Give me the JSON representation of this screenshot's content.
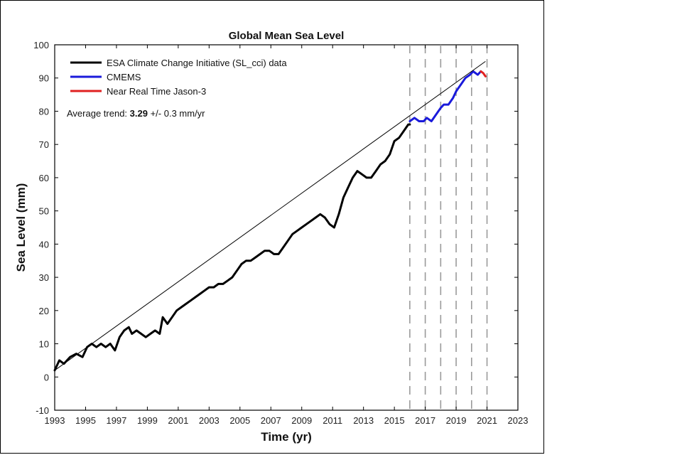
{
  "chart_data": {
    "type": "line",
    "title": "Global Mean Sea Level",
    "xlabel": "Time (yr)",
    "ylabel": "Sea Level (mm)",
    "xlim": [
      1993,
      2023
    ],
    "ylim": [
      -10,
      100
    ],
    "x_ticks": [
      1993,
      1995,
      1997,
      1999,
      2001,
      2003,
      2005,
      2007,
      2009,
      2011,
      2013,
      2015,
      2017,
      2019,
      2021,
      2023
    ],
    "y_ticks": [
      -10,
      0,
      10,
      20,
      30,
      40,
      50,
      60,
      70,
      80,
      90,
      100
    ],
    "grid": false,
    "legend_position": "top-left",
    "series": [
      {
        "name": "ESA Climate Change Initiative (SL_cci) data",
        "color": "#000000",
        "x": [
          1993.0,
          1993.3,
          1993.6,
          1994.0,
          1994.4,
          1994.8,
          1995.1,
          1995.4,
          1995.7,
          1996.0,
          1996.3,
          1996.6,
          1996.9,
          1997.2,
          1997.5,
          1997.8,
          1998.0,
          1998.3,
          1998.6,
          1998.9,
          1999.2,
          1999.5,
          1999.8,
          2000.0,
          2000.3,
          2000.6,
          2000.9,
          2001.2,
          2001.5,
          2001.8,
          2002.1,
          2002.4,
          2002.7,
          2003.0,
          2003.3,
          2003.6,
          2003.9,
          2004.2,
          2004.5,
          2004.8,
          2005.1,
          2005.4,
          2005.7,
          2006.0,
          2006.3,
          2006.6,
          2006.9,
          2007.2,
          2007.5,
          2007.8,
          2008.1,
          2008.4,
          2008.7,
          2009.0,
          2009.3,
          2009.6,
          2009.9,
          2010.2,
          2010.5,
          2010.8,
          2011.1,
          2011.4,
          2011.7,
          2012.0,
          2012.3,
          2012.6,
          2012.9,
          2013.2,
          2013.5,
          2013.8,
          2014.1,
          2014.4,
          2014.7,
          2015.0,
          2015.3,
          2015.6,
          2015.9,
          2016.0
        ],
        "values": [
          2,
          5,
          4,
          6,
          7,
          6,
          9,
          10,
          9,
          10,
          9,
          10,
          8,
          12,
          14,
          15,
          13,
          14,
          13,
          12,
          13,
          14,
          13,
          18,
          16,
          18,
          20,
          21,
          22,
          23,
          24,
          25,
          26,
          27,
          27,
          28,
          28,
          29,
          30,
          32,
          34,
          35,
          35,
          36,
          37,
          38,
          38,
          37,
          37,
          39,
          41,
          43,
          44,
          45,
          46,
          47,
          48,
          49,
          48,
          46,
          45,
          49,
          54,
          57,
          60,
          62,
          61,
          60,
          60,
          62,
          64,
          65,
          67,
          71,
          72,
          74,
          76,
          76
        ]
      },
      {
        "name": "CMEMS",
        "color": "#1a1adb",
        "x": [
          2016.0,
          2016.3,
          2016.6,
          2016.9,
          2017.1,
          2017.4,
          2017.7,
          2018.0,
          2018.2,
          2018.5,
          2018.8,
          2019.0,
          2019.3,
          2019.6,
          2019.9,
          2020.1,
          2020.4,
          2020.6
        ],
        "values": [
          77,
          78,
          77,
          77,
          78,
          77,
          79,
          81,
          82,
          82,
          84,
          86,
          88,
          90,
          91,
          92,
          91,
          92
        ]
      },
      {
        "name": "Near Real Time Jason-3",
        "color": "#e02020",
        "x": [
          2020.6,
          2020.75,
          2020.9
        ],
        "values": [
          92,
          91.5,
          90.5
        ]
      }
    ],
    "trend_line": {
      "x": [
        1993,
        2020.9
      ],
      "values": [
        2,
        95
      ],
      "color": "#000000"
    },
    "vertical_dashed_lines": [
      2016,
      2017,
      2018,
      2019,
      2020,
      2021
    ],
    "annotation": {
      "prefix": "Average trend: ",
      "value": "3.29",
      "suffix": " +/- 0.3 mm/yr"
    }
  }
}
